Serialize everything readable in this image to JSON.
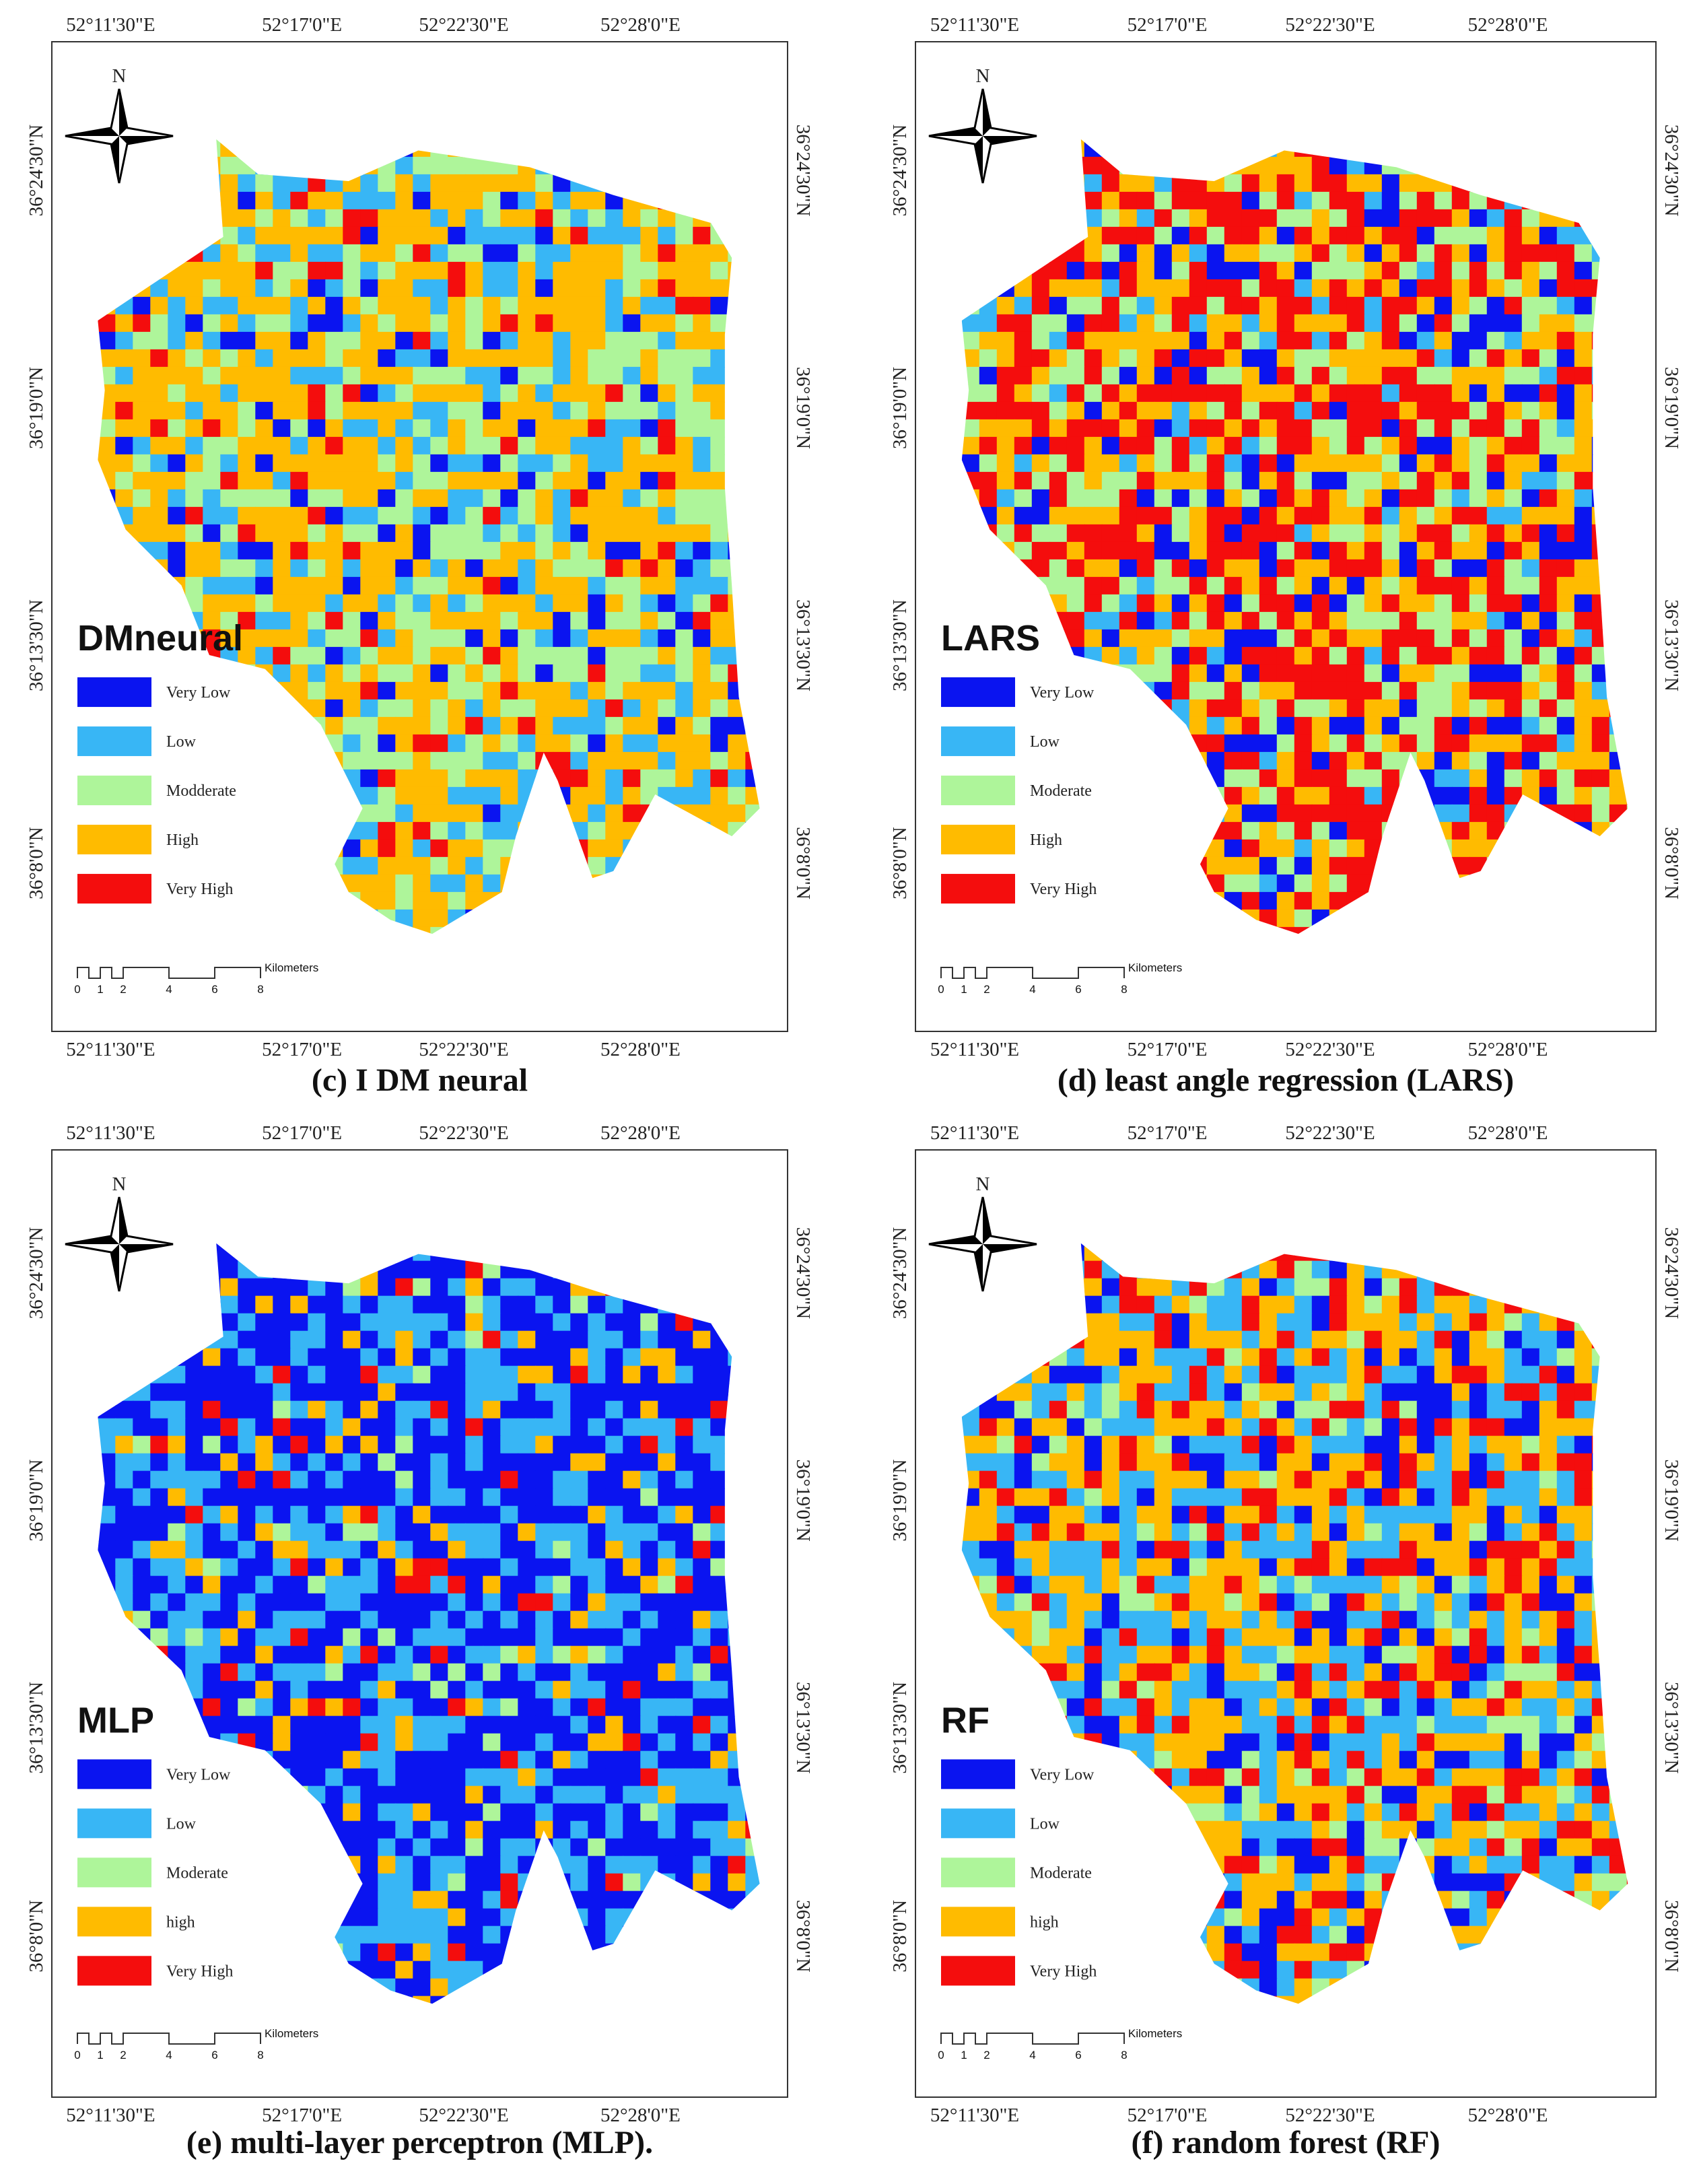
{
  "panels": [
    {
      "name": "DMneural",
      "caption": "(c) I DM neural",
      "north": "N",
      "legend": [
        {
          "label": "Very Low",
          "color": "#0a14f0"
        },
        {
          "label": "Low",
          "color": "#38b6f5"
        },
        {
          "label": "Modderate",
          "color": "#aef59a"
        },
        {
          "label": "High",
          "color": "#ffbb00"
        },
        {
          "label": "Very High",
          "color": "#f40d0d"
        }
      ],
      "top_lon": [
        "52°11'30\"E",
        "52°17'0\"E",
        "52°22'30\"E",
        "52°28'0\"E"
      ],
      "bottom_lon": [
        "52°11'30\"E",
        "52°17'0\"E",
        "52°22'30\"E",
        "52°28'0\"E"
      ],
      "left_lat": [
        "36°24'30\"N",
        "36°19'0\"N",
        "36°13'30\"N",
        "36°8'0\"N"
      ],
      "right_lat": [
        "36°24'30\"N",
        "36°19'0\"N",
        "36°13'30\"N",
        "36°8'0\"N"
      ],
      "scale_labels": [
        "0",
        "1",
        "2",
        "4",
        "6",
        "8"
      ],
      "scale_unit": "Kilometers"
    },
    {
      "name": "LARS",
      "caption": "(d) least angle regression (LARS)",
      "north": "N",
      "legend": [
        {
          "label": "Very Low",
          "color": "#0a14f0"
        },
        {
          "label": "Low",
          "color": "#38b6f5"
        },
        {
          "label": "Moderate",
          "color": "#aef59a"
        },
        {
          "label": "High",
          "color": "#ffbb00"
        },
        {
          "label": "Very High",
          "color": "#f40d0d"
        }
      ],
      "top_lon": [
        "52°11'30\"E",
        "52°17'0\"E",
        "52°22'30\"E",
        "52°28'0\"E"
      ],
      "bottom_lon": [
        "52°11'30\"E",
        "52°17'0\"E",
        "52°22'30\"E",
        "52°28'0\"E"
      ],
      "left_lat": [
        "36°24'30\"N",
        "36°19'0\"N",
        "36°13'30\"N",
        "36°8'0\"N"
      ],
      "right_lat": [
        "36°24'30\"N",
        "36°19'0\"N",
        "36°13'30\"N",
        "36°8'0\"N"
      ],
      "scale_labels": [
        "0",
        "1",
        "2",
        "4",
        "6",
        "8"
      ],
      "scale_unit": "Kilometers"
    },
    {
      "name": "MLP",
      "caption": "(e) multi-layer perceptron (MLP).",
      "north": "N",
      "legend": [
        {
          "label": "Very Low",
          "color": "#0a14f0"
        },
        {
          "label": "Low",
          "color": "#38b6f5"
        },
        {
          "label": "Moderate",
          "color": "#aef59a"
        },
        {
          "label": "high",
          "color": "#ffbb00"
        },
        {
          "label": "Very High",
          "color": "#f40d0d"
        }
      ],
      "top_lon": [
        "52°11'30\"E",
        "52°17'0\"E",
        "52°22'30\"E",
        "52°28'0\"E"
      ],
      "bottom_lon": [
        "52°11'30\"E",
        "52°17'0\"E",
        "52°22'30\"E",
        "52°28'0\"E"
      ],
      "left_lat": [
        "36°24'30\"N",
        "36°19'0\"N",
        "36°13'30\"N",
        "36°8'0\"N"
      ],
      "right_lat": [
        "36°24'30\"N",
        "36°19'0\"N",
        "36°13'30\"N",
        "36°8'0\"N"
      ],
      "scale_labels": [
        "0",
        "1",
        "2",
        "4",
        "6",
        "8"
      ],
      "scale_unit": "Kilometers"
    },
    {
      "name": "RF",
      "caption": "(f) random forest (RF)",
      "north": "N",
      "legend": [
        {
          "label": "Very Low",
          "color": "#0a14f0"
        },
        {
          "label": "Low",
          "color": "#38b6f5"
        },
        {
          "label": "Moderate",
          "color": "#aef59a"
        },
        {
          "label": "high",
          "color": "#ffbb00"
        },
        {
          "label": "Very High",
          "color": "#f40d0d"
        }
      ],
      "top_lon": [
        "52°11'30\"E",
        "52°17'0\"E",
        "52°22'30\"E",
        "52°28'0\"E"
      ],
      "bottom_lon": [
        "52°11'30\"E",
        "52°17'0\"E",
        "52°22'30\"E",
        "52°28'0\"E"
      ],
      "left_lat": [
        "36°24'30\"N",
        "36°19'0\"N",
        "36°13'30\"N",
        "36°8'0\"N"
      ],
      "right_lat": [
        "36°24'30\"N",
        "36°19'0\"N",
        "36°13'30\"N",
        "36°8'0\"N"
      ],
      "scale_labels": [
        "0",
        "1",
        "2",
        "4",
        "6",
        "8"
      ],
      "scale_unit": "Kilometers"
    }
  ]
}
